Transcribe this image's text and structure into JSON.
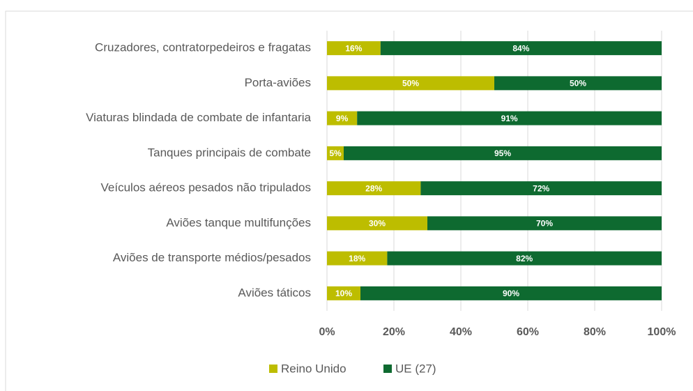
{
  "chart_data": {
    "type": "stacked_barh",
    "categories": [
      "Cruzadores, contratorpedeiros e fragatas",
      "Porta-aviões",
      "Viaturas blindada de combate de infantaria",
      "Tanques principais de combate",
      "Veículos aéreos pesados não tripulados",
      "Aviões tanque multifunções",
      "Aviões de transporte médios/pesados",
      "Aviões táticos"
    ],
    "series": [
      {
        "name": "Reino Unido",
        "color": "#bdbd00",
        "values": [
          16,
          50,
          9,
          5,
          28,
          30,
          18,
          10
        ],
        "value_labels": [
          "16%",
          "50%",
          "9%",
          "5%",
          "28%",
          "30%",
          "18%",
          "10%"
        ]
      },
      {
        "name": "UE (27)",
        "color": "#0e6a30",
        "values": [
          84,
          50,
          91,
          95,
          72,
          70,
          82,
          90
        ],
        "value_labels": [
          "84%",
          "50%",
          "91%",
          "95%",
          "72%",
          "70%",
          "82%",
          "90%"
        ]
      }
    ],
    "xlim": [
      0,
      100
    ],
    "xticks": [
      {
        "value": 0,
        "label": "0%"
      },
      {
        "value": 20,
        "label": "20%"
      },
      {
        "value": 40,
        "label": "40%"
      },
      {
        "value": 60,
        "label": "60%"
      },
      {
        "value": 80,
        "label": "80%"
      },
      {
        "value": 100,
        "label": "100%"
      }
    ],
    "grid": true,
    "legend": "bottom"
  }
}
